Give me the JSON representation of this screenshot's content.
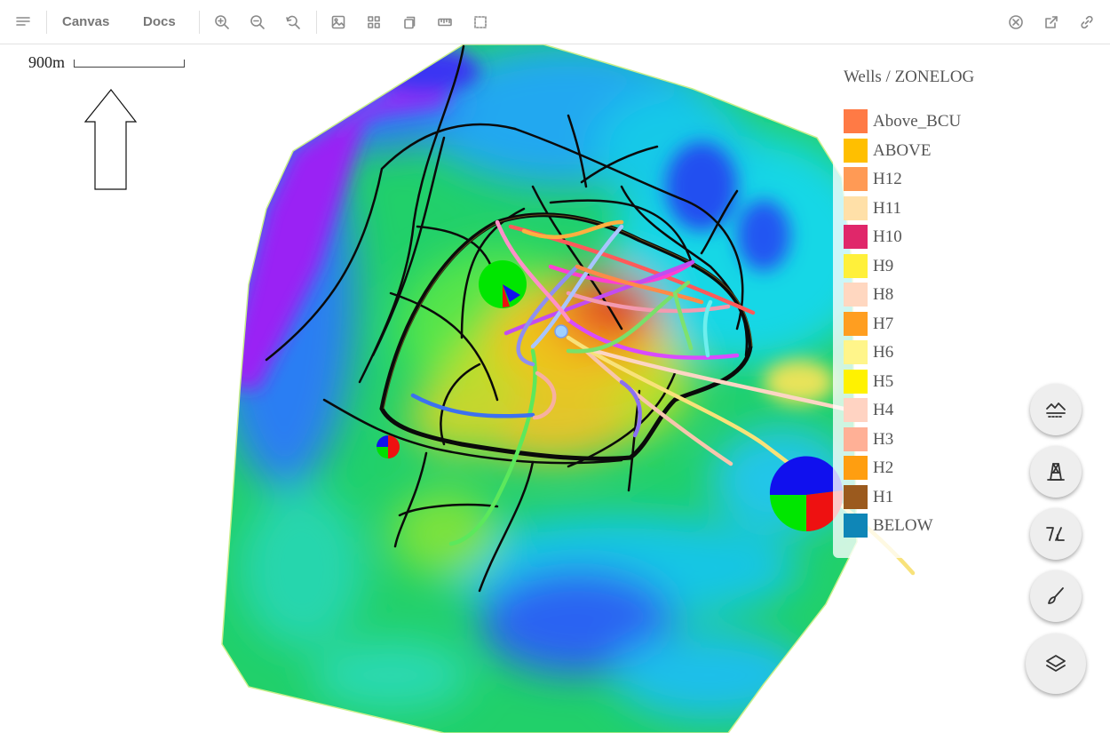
{
  "toolbar": {
    "menu_icon": "menu-icon",
    "tabs": [
      {
        "label": "Canvas"
      },
      {
        "label": "Docs"
      }
    ],
    "tools": [
      "zoom-in-icon",
      "zoom-out-icon",
      "reset-zoom-icon",
      "image-icon",
      "grid-icon",
      "copy-icon",
      "ruler-icon",
      "fullscreen-icon"
    ],
    "right_tools": [
      "close-icon",
      "open-external-icon",
      "link-icon"
    ]
  },
  "map": {
    "scale_label": "900m",
    "north_arrow": "north-arrow-icon"
  },
  "legend": {
    "title": "Wells / ZONELOG",
    "items": [
      {
        "label": "Above_BCU",
        "color": "#ff7a45"
      },
      {
        "label": "ABOVE",
        "color": "#ffbf00"
      },
      {
        "label": "H12",
        "color": "#ff9a55"
      },
      {
        "label": "H11",
        "color": "#ffe0a8"
      },
      {
        "label": "H10",
        "color": "#e0276a"
      },
      {
        "label": "H9",
        "color": "#fff03a"
      },
      {
        "label": "H8",
        "color": "#ffd7c0"
      },
      {
        "label": "H7",
        "color": "#ff9e20"
      },
      {
        "label": "H6",
        "color": "#fff58a"
      },
      {
        "label": "H5",
        "color": "#fff200"
      },
      {
        "label": "H4",
        "color": "#ffd3c2"
      },
      {
        "label": "H3",
        "color": "#ffb096"
      },
      {
        "label": "H2",
        "color": "#ff9e10"
      },
      {
        "label": "H1",
        "color": "#9b5a1e"
      },
      {
        "label": "BELOW",
        "color": "#0f86b7"
      }
    ]
  },
  "fabs": [
    "surface-icon",
    "well-icon",
    "fault-icon",
    "draw-icon",
    "layers-icon"
  ]
}
